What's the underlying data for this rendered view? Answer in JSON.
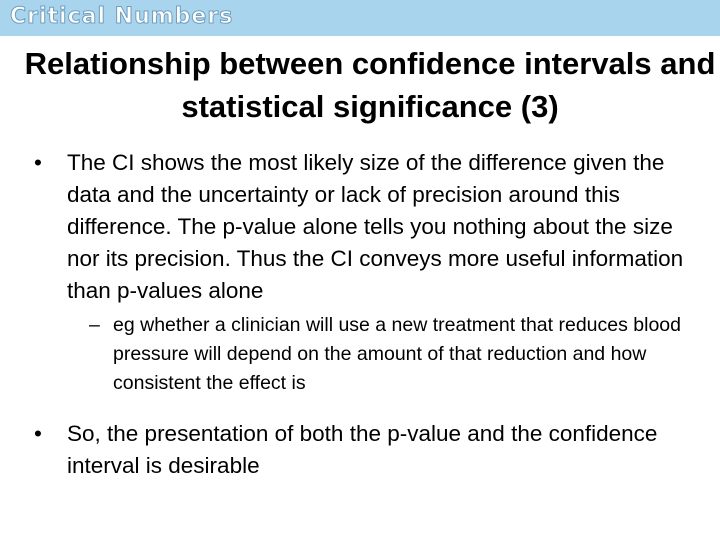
{
  "header": {
    "brand": "Critical Numbers"
  },
  "title": "Relationship between confidence intervals and statistical significance (3)",
  "bullets": [
    {
      "marker": "•",
      "text": "The CI shows the most likely size of the difference given the data and the uncertainty or lack of precision around this difference. The p-value alone tells you nothing about the size nor its precision. Thus the CI conveys more useful information than p-values alone",
      "sub": [
        {
          "marker": "–",
          "text": "eg whether a clinician will use a new treatment that reduces blood pressure will depend on the amount of that reduction and how consistent the effect is"
        }
      ]
    },
    {
      "marker": "•",
      "text": "So, the presentation of both the p-value and the confidence interval is desirable"
    }
  ]
}
